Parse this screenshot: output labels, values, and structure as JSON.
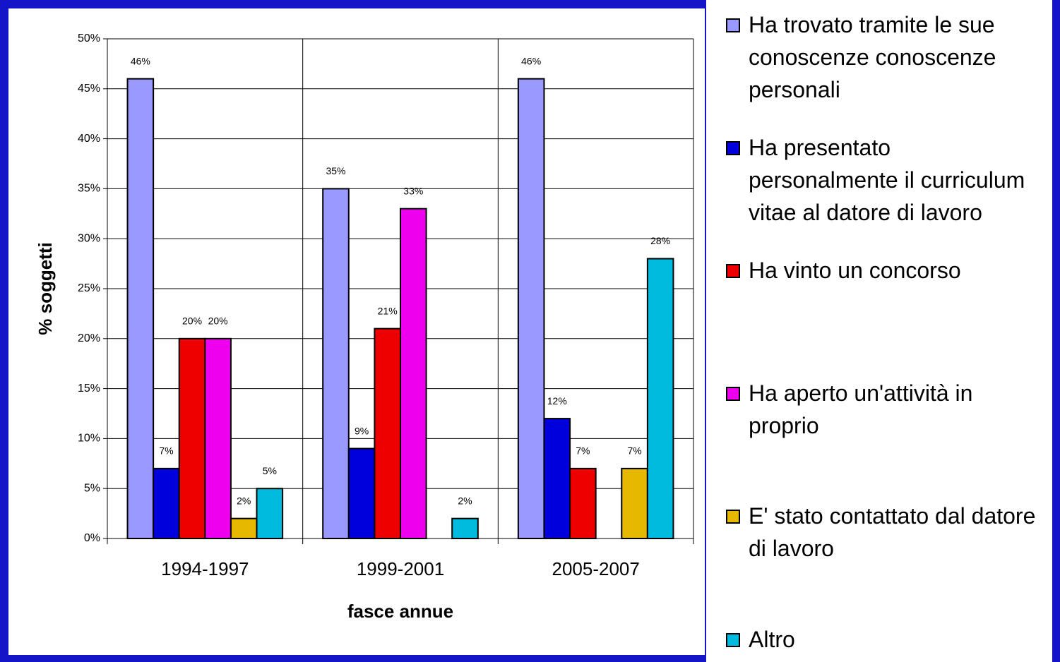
{
  "chart_data": {
    "type": "bar",
    "y_label": "% soggetti",
    "x_label": "fasce annue",
    "categories": [
      "1994-1997",
      "1999-2001",
      "2005-2007"
    ],
    "series": [
      {
        "name": "Ha trovato tramite le sue conoscenze conoscenze personali",
        "color": "#9999ff",
        "values": [
          46,
          35,
          46
        ],
        "value_labels": [
          "46%",
          "35%",
          "46%"
        ]
      },
      {
        "name": "Ha presentato personalmente il curriculum vitae al datore di lavoro",
        "color": "#0000dd",
        "values": [
          7,
          9,
          12
        ],
        "value_labels": [
          "7%",
          "9%",
          "12%"
        ]
      },
      {
        "name": "Ha vinto un concorso",
        "color": "#ee0000",
        "values": [
          20,
          21,
          7
        ],
        "value_labels": [
          "20%",
          "21%",
          "7%"
        ]
      },
      {
        "name": "Ha aperto un'attività in proprio",
        "color": "#ee00ee",
        "values": [
          20,
          33,
          null
        ],
        "value_labels": [
          "20%",
          "33%",
          null
        ]
      },
      {
        "name": "E' stato contattato dal datore di lavoro",
        "color": "#e6b800",
        "values": [
          2,
          null,
          7
        ],
        "value_labels": [
          "2%",
          null,
          "7%"
        ]
      },
      {
        "name": "Altro",
        "color": "#00bbdd",
        "values": [
          5,
          2,
          28
        ],
        "value_labels": [
          "5%",
          "2%",
          "28%"
        ]
      }
    ],
    "ylim": [
      0,
      50
    ],
    "yticks": [
      {
        "value": 0,
        "label": "0%"
      },
      {
        "value": 5,
        "label": "5%"
      },
      {
        "value": 10,
        "label": "10%"
      },
      {
        "value": 15,
        "label": "15%"
      },
      {
        "value": 20,
        "label": "20%"
      },
      {
        "value": 25,
        "label": "25%"
      },
      {
        "value": 30,
        "label": "30%"
      },
      {
        "value": 35,
        "label": "35%"
      },
      {
        "value": 40,
        "label": "40%"
      },
      {
        "value": 45,
        "label": "45%"
      },
      {
        "value": 50,
        "label": "50%"
      }
    ],
    "grid": true,
    "legend": "right"
  }
}
